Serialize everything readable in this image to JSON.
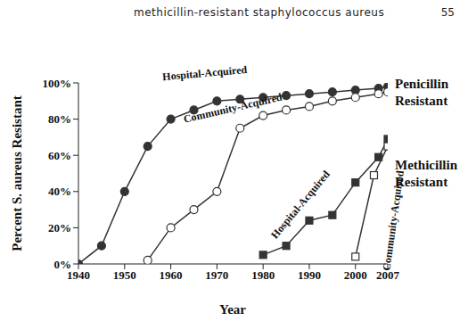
{
  "header": {
    "text": "methicillin-resistant staphylococcus aureus",
    "page": 55
  },
  "chart_data": {
    "type": "line",
    "x_label": "Year",
    "y_label": "Percent S. aureus Resistant",
    "xlim": [
      1940,
      2007
    ],
    "xticks": [
      1940,
      1950,
      1960,
      1970,
      1980,
      1990,
      2000,
      2007
    ],
    "ylim": [
      0,
      100
    ],
    "yticks": [
      {
        "value": 0,
        "label": "0%"
      },
      {
        "value": 20,
        "label": "20%"
      },
      {
        "value": 40,
        "label": "40%"
      },
      {
        "value": 60,
        "label": "60%"
      },
      {
        "value": 80,
        "label": "80%"
      },
      {
        "value": 100,
        "label": "100%"
      }
    ],
    "grid": false,
    "series": [
      {
        "name": "Hospital-Acquired",
        "group": "Penicillin Resistant",
        "color": "#333333",
        "marker": "filled_circle",
        "x": [
          1940,
          1945,
          1950,
          1955,
          1960,
          1965,
          1970,
          1975,
          1980,
          1985,
          1990,
          1995,
          2000,
          2005,
          2007
        ],
        "values": [
          0,
          10,
          40,
          65,
          80,
          85,
          90,
          91,
          92,
          93,
          94,
          95,
          96,
          97,
          98
        ]
      },
      {
        "name": "Community-Acquired",
        "group": "Penicillin Resistant",
        "color": "#333333",
        "marker": "open_circle",
        "x": [
          1955,
          1960,
          1965,
          1970,
          1975,
          1980,
          1985,
          1990,
          1995,
          2000,
          2005,
          2007
        ],
        "values": [
          2,
          20,
          30,
          40,
          75,
          82,
          85,
          87,
          90,
          92,
          94,
          95
        ]
      },
      {
        "name": "Hospital-Acquired",
        "group": "Methicillin Resistant",
        "color": "#333333",
        "marker": "filled_square",
        "x": [
          1980,
          1985,
          1990,
          1995,
          2000,
          2005,
          2007
        ],
        "values": [
          5,
          10,
          24,
          27,
          45,
          59,
          69
        ]
      },
      {
        "name": "Community-Acquired",
        "group": "Methicillin Resistant",
        "color": "#333333",
        "marker": "open_square",
        "x": [
          2000,
          2004,
          2007
        ],
        "values": [
          4,
          49,
          65
        ]
      }
    ]
  }
}
